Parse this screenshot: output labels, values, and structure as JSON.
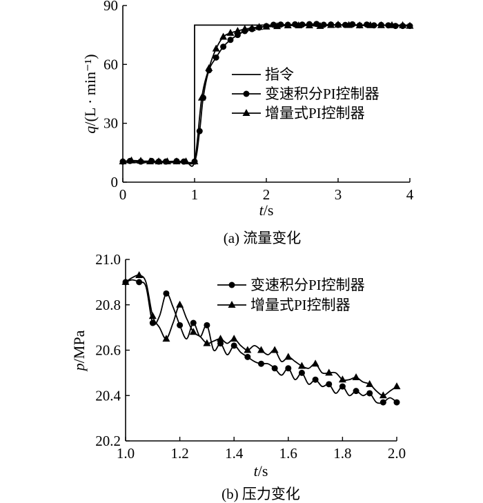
{
  "chart_data": [
    {
      "type": "line",
      "caption": "(a) 流量变化",
      "xlabel_var": "t",
      "xlabel_unit": "/s",
      "ylabel_var": "q",
      "ylabel_unit": "/(L · min⁻¹)",
      "xlim": [
        0,
        4
      ],
      "ylim": [
        0,
        90
      ],
      "xticks": [
        "0",
        "1",
        "2",
        "3",
        "4"
      ],
      "yticks": [
        "0",
        "30",
        "60",
        "90"
      ],
      "grid": false,
      "legend_position": "right-middle",
      "series": [
        {
          "name": "指令",
          "marker": "none",
          "x": [
            0,
            1,
            1,
            4
          ],
          "y": [
            10,
            10,
            80,
            80
          ]
        },
        {
          "name": "变速积分PI控制器",
          "marker": "circle",
          "x": [
            0,
            0.1,
            0.25,
            0.4,
            0.5,
            0.6,
            0.75,
            0.85,
            1.0,
            1.07,
            1.12,
            1.2,
            1.3,
            1.4,
            1.5,
            1.6,
            1.7,
            1.8,
            1.9,
            2.0,
            2.1,
            2.2,
            2.3,
            2.4,
            2.5,
            2.6,
            2.7,
            2.8,
            2.9,
            3.0,
            3.1,
            3.2,
            3.3,
            3.4,
            3.5,
            3.6,
            3.7,
            3.8,
            3.9,
            4.0
          ],
          "y": [
            10.5,
            10.8,
            10.5,
            10.8,
            10.5,
            10.5,
            10.7,
            10.5,
            10.5,
            26,
            43,
            57,
            63.5,
            69,
            72.5,
            75,
            77,
            78,
            78.8,
            79.5,
            80.2,
            80.3,
            80.2,
            80.4,
            80.3,
            80.5,
            80.6,
            80.2,
            80.3,
            80.1,
            80.1,
            80.4,
            79.9,
            80.3,
            79.9,
            80.1,
            79.9,
            79.6,
            79.6,
            79.6
          ]
        },
        {
          "name": "增量式PI控制器",
          "marker": "triangle",
          "x": [
            0,
            0.12,
            0.25,
            0.38,
            0.5,
            0.62,
            0.75,
            0.88,
            1.0,
            1.1,
            1.2,
            1.3,
            1.4,
            1.5,
            1.6,
            1.7,
            1.8,
            1.9,
            2.0,
            2.15,
            2.3,
            2.45,
            2.6,
            2.75,
            2.9,
            3.0,
            3.15,
            3.3,
            3.45,
            3.6,
            3.75,
            3.9,
            4.0
          ],
          "y": [
            10.5,
            11,
            10.8,
            10.5,
            10.5,
            10.5,
            10.5,
            10.5,
            10.5,
            43,
            58,
            68,
            74,
            76,
            77,
            78,
            78.5,
            79,
            79.2,
            79.4,
            79.8,
            79.8,
            79.8,
            79.5,
            80,
            80.2,
            80,
            79.8,
            79.9,
            79.9,
            79.9,
            79.9,
            79.6
          ]
        }
      ]
    },
    {
      "type": "line",
      "caption": "(b) 压力变化",
      "xlabel_var": "t",
      "xlabel_unit": "/s",
      "ylabel_var": "p",
      "ylabel_unit": "/MPa",
      "xlim": [
        1.0,
        2.0
      ],
      "ylim": [
        20.2,
        21.0
      ],
      "xticks": [
        "1.0",
        "1.2",
        "1.4",
        "1.6",
        "1.8",
        "2.0"
      ],
      "yticks": [
        "20.2",
        "20.4",
        "20.6",
        "20.8",
        "21.0"
      ],
      "grid": false,
      "legend_position": "top-right",
      "series": [
        {
          "name": "变速积分PI控制器",
          "marker": "circle",
          "x": [
            1.0,
            1.025,
            1.05,
            1.075,
            1.1,
            1.125,
            1.15,
            1.175,
            1.2,
            1.225,
            1.25,
            1.275,
            1.3,
            1.325,
            1.35,
            1.375,
            1.4,
            1.425,
            1.45,
            1.475,
            1.5,
            1.525,
            1.55,
            1.575,
            1.6,
            1.625,
            1.65,
            1.675,
            1.7,
            1.725,
            1.75,
            1.775,
            1.8,
            1.825,
            1.85,
            1.875,
            1.9,
            1.925,
            1.95,
            1.975,
            2.0
          ],
          "y": [
            20.9,
            20.91,
            20.9,
            20.88,
            20.72,
            20.75,
            20.85,
            20.79,
            20.71,
            20.65,
            20.72,
            20.66,
            20.71,
            20.6,
            20.63,
            20.58,
            20.62,
            20.59,
            20.57,
            20.55,
            20.54,
            20.54,
            20.52,
            20.49,
            20.52,
            20.47,
            20.5,
            20.45,
            20.47,
            20.44,
            20.45,
            20.41,
            20.44,
            20.4,
            20.42,
            20.4,
            20.41,
            20.37,
            20.37,
            20.39,
            20.37
          ]
        },
        {
          "name": "增量式PI控制器",
          "marker": "triangle",
          "x": [
            1.0,
            1.025,
            1.05,
            1.075,
            1.1,
            1.125,
            1.15,
            1.175,
            1.2,
            1.225,
            1.25,
            1.275,
            1.3,
            1.325,
            1.35,
            1.375,
            1.4,
            1.425,
            1.45,
            1.475,
            1.5,
            1.525,
            1.55,
            1.575,
            1.6,
            1.625,
            1.65,
            1.675,
            1.7,
            1.725,
            1.75,
            1.775,
            1.8,
            1.825,
            1.85,
            1.875,
            1.9,
            1.925,
            1.95,
            1.975,
            2.0
          ],
          "y": [
            20.9,
            20.92,
            20.93,
            20.9,
            20.75,
            20.7,
            20.65,
            20.72,
            20.8,
            20.74,
            20.68,
            20.66,
            20.63,
            20.64,
            20.65,
            20.63,
            20.65,
            20.62,
            20.6,
            20.62,
            20.6,
            20.58,
            20.6,
            20.55,
            20.57,
            20.55,
            20.53,
            20.52,
            20.54,
            20.5,
            20.5,
            20.5,
            20.47,
            20.47,
            20.48,
            20.46,
            20.45,
            20.42,
            20.4,
            20.42,
            20.44
          ]
        }
      ]
    }
  ]
}
